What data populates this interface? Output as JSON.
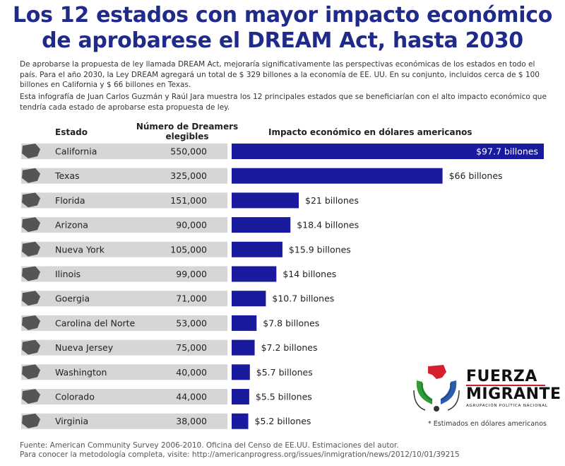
{
  "title_line1": "Los 12 estados con mayor impacto económico",
  "title_line2": "de aprobarese el DREAM Act, hasta 2030",
  "intro_p1": "De aprobarse la propuesta de ley llamada DREAM Act, mejoraría significativamente las perspectivas económicas de los estados en todo el país. Para el año 2030, la Ley DREAM agregará un total de $ 329 billones a la economía de EE. UU. En su conjunto, incluidos cerca de $ 100 billones en California y $ 66 billones en Texas.",
  "intro_p2": "Esta infografía de Juan Carlos Guzmán y Raúl Jara muestra los 12 principales estados que se beneficiarían con el alto impacto económico que tendría cada estado de aprobarse esta propuesta de ley.",
  "headers": {
    "estado": "Estado",
    "dreamers": "Número de Dreamers elegibles",
    "impacto": "Impacto económico en dólares americanos"
  },
  "chart_data": {
    "type": "bar",
    "orientation": "horizontal",
    "categories": [
      "California",
      "Texas",
      "Florida",
      "Arizona",
      "Nueva York",
      "Ilinois",
      "Goergia",
      "Carolina del Norte",
      "Nueva Jersey",
      "Washington",
      "Colorado",
      "Virginia"
    ],
    "dreamers": [
      "550,000",
      "325,000",
      "151,000",
      "90,000",
      "105,000",
      "99,000",
      "71,000",
      "53,000",
      "75,000",
      "40,000",
      "44,000",
      "38,000"
    ],
    "values": [
      97.7,
      66,
      21,
      18.4,
      15.9,
      14,
      10.7,
      7.8,
      7.2,
      5.7,
      5.5,
      5.2
    ],
    "value_labels": [
      "$97.7 billones",
      "$66 billones",
      "$21 billones",
      "$18.4 billones",
      "$15.9 billones",
      "$14 billones",
      "$10.7 billones",
      "$7.8 billones",
      "$7.2 billones",
      "$5.7 billones",
      "$5.5 billones",
      "$5.2 billones"
    ],
    "xlim": [
      0,
      97.7
    ],
    "bar_color": "#1a1a9e",
    "row_color": "#d6d6d6",
    "state_icon_color": "#555555"
  },
  "footnote": "* Estimados en dólares americanos",
  "source_line1": "Fuente: American Community Survey 2006-2010. Oficina del Censo de EE.UU. Estimaciones del autor.",
  "source_line2": "Para conocer la metodología completa, visite: http://americanprogress.org/issues/inmigration/news/2012/10/01/39215",
  "logo": {
    "line1": "FUERZA",
    "line2": "MIGRANTE",
    "line3": "AGRUPACIÓN POLÍTICA NACIONAL"
  }
}
